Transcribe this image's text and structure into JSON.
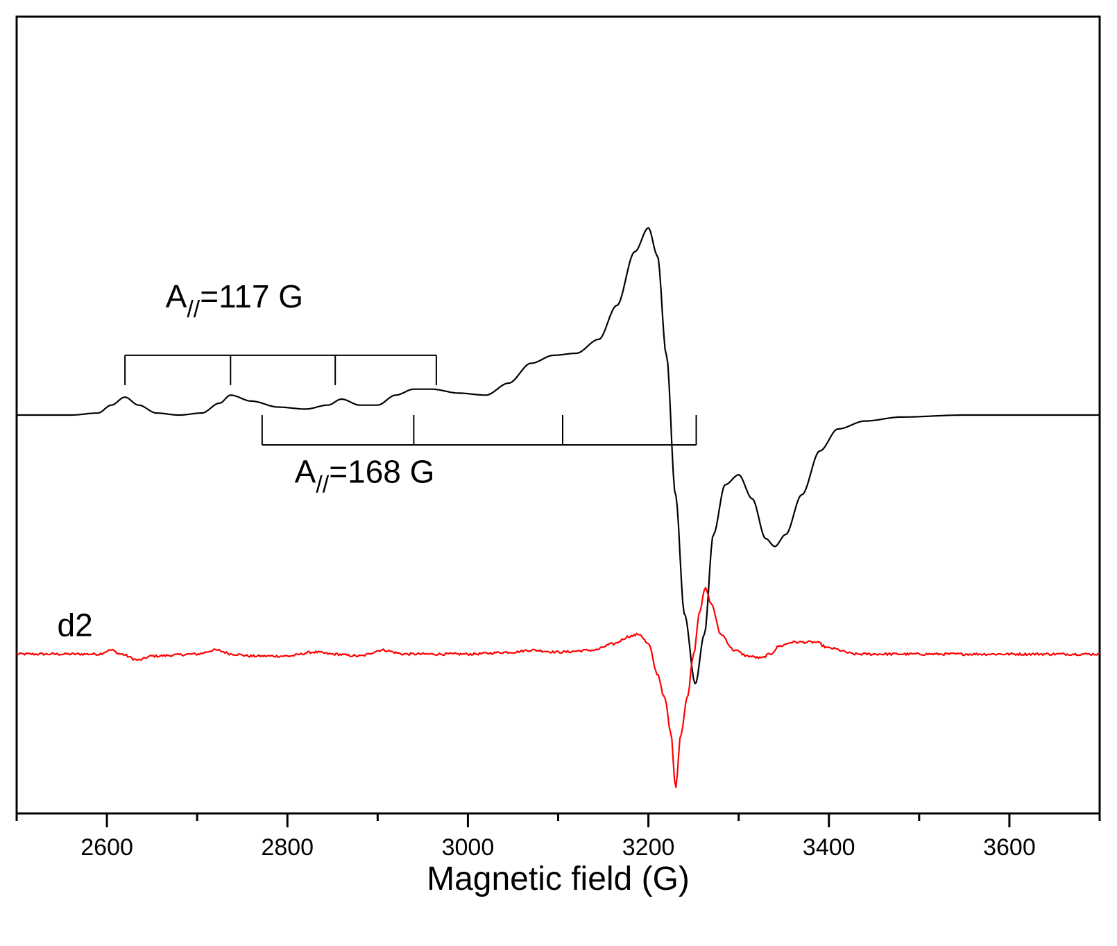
{
  "chart_data": {
    "type": "line",
    "title": "",
    "xlabel": "Magnetic field (G)",
    "ylabel": "",
    "xlim": [
      2500,
      3700
    ],
    "ylim": [
      -2.0,
      2.0
    ],
    "x_ticks": [
      2600,
      2800,
      3000,
      3200,
      3400,
      3600
    ],
    "x_minor_ticks": [
      2500,
      2700,
      2900,
      3100,
      3300,
      3500,
      3700
    ],
    "y_ticks_shown": false,
    "grid": false,
    "series": [
      {
        "name": "",
        "color": "#000000",
        "points": [
          [
            2500,
            0.0
          ],
          [
            2560,
            0.0
          ],
          [
            2590,
            0.01
          ],
          [
            2605,
            0.05
          ],
          [
            2620,
            0.09
          ],
          [
            2635,
            0.05
          ],
          [
            2655,
            0.01
          ],
          [
            2680,
            0.0
          ],
          [
            2705,
            0.01
          ],
          [
            2725,
            0.06
          ],
          [
            2737,
            0.1
          ],
          [
            2760,
            0.07
          ],
          [
            2790,
            0.04
          ],
          [
            2820,
            0.03
          ],
          [
            2845,
            0.05
          ],
          [
            2860,
            0.08
          ],
          [
            2880,
            0.05
          ],
          [
            2900,
            0.05
          ],
          [
            2920,
            0.1
          ],
          [
            2940,
            0.13
          ],
          [
            2960,
            0.13
          ],
          [
            2990,
            0.11
          ],
          [
            3020,
            0.1
          ],
          [
            3045,
            0.16
          ],
          [
            3070,
            0.26
          ],
          [
            3095,
            0.3
          ],
          [
            3120,
            0.31
          ],
          [
            3145,
            0.38
          ],
          [
            3165,
            0.55
          ],
          [
            3185,
            0.82
          ],
          [
            3200,
            0.94
          ],
          [
            3210,
            0.8
          ],
          [
            3220,
            0.3
          ],
          [
            3230,
            -0.4
          ],
          [
            3240,
            -1.0
          ],
          [
            3252,
            -1.35
          ],
          [
            3262,
            -1.1
          ],
          [
            3272,
            -0.6
          ],
          [
            3285,
            -0.35
          ],
          [
            3300,
            -0.3
          ],
          [
            3315,
            -0.42
          ],
          [
            3330,
            -0.62
          ],
          [
            3340,
            -0.66
          ],
          [
            3352,
            -0.6
          ],
          [
            3370,
            -0.4
          ],
          [
            3390,
            -0.18
          ],
          [
            3410,
            -0.07
          ],
          [
            3440,
            -0.03
          ],
          [
            3480,
            -0.01
          ],
          [
            3550,
            0.0
          ],
          [
            3700,
            0.0
          ]
        ]
      },
      {
        "name": "d2",
        "color": "#ff0000",
        "noise": 0.006,
        "points": [
          [
            2500,
            -1.2
          ],
          [
            2590,
            -1.2
          ],
          [
            2605,
            -1.18
          ],
          [
            2615,
            -1.2
          ],
          [
            2635,
            -1.23
          ],
          [
            2650,
            -1.21
          ],
          [
            2700,
            -1.2
          ],
          [
            2720,
            -1.18
          ],
          [
            2740,
            -1.2
          ],
          [
            2760,
            -1.21
          ],
          [
            2800,
            -1.21
          ],
          [
            2830,
            -1.19
          ],
          [
            2850,
            -1.2
          ],
          [
            2880,
            -1.21
          ],
          [
            2905,
            -1.18
          ],
          [
            2930,
            -1.2
          ],
          [
            3000,
            -1.2
          ],
          [
            3050,
            -1.19
          ],
          [
            3070,
            -1.18
          ],
          [
            3100,
            -1.19
          ],
          [
            3140,
            -1.18
          ],
          [
            3160,
            -1.15
          ],
          [
            3180,
            -1.11
          ],
          [
            3190,
            -1.1
          ],
          [
            3200,
            -1.15
          ],
          [
            3210,
            -1.3
          ],
          [
            3218,
            -1.42
          ],
          [
            3225,
            -1.6
          ],
          [
            3230,
            -1.87
          ],
          [
            3236,
            -1.6
          ],
          [
            3243,
            -1.42
          ],
          [
            3250,
            -1.2
          ],
          [
            3257,
            -0.98
          ],
          [
            3263,
            -0.87
          ],
          [
            3270,
            -0.95
          ],
          [
            3280,
            -1.1
          ],
          [
            3295,
            -1.18
          ],
          [
            3310,
            -1.21
          ],
          [
            3325,
            -1.22
          ],
          [
            3335,
            -1.2
          ],
          [
            3345,
            -1.16
          ],
          [
            3360,
            -1.14
          ],
          [
            3385,
            -1.14
          ],
          [
            3400,
            -1.17
          ],
          [
            3430,
            -1.2
          ],
          [
            3700,
            -1.2
          ]
        ]
      }
    ],
    "annotations": [
      {
        "label": "d2",
        "at": [
          2545,
          -1.11
        ]
      },
      {
        "text_main": "A",
        "text_sub": "//",
        "text_tail": "=117 G",
        "label_at": [
          2665,
          0.54
        ],
        "bracket": {
          "y": 0.3,
          "tick_to": 0.15,
          "positions": [
            2620,
            2737,
            2853,
            2965
          ]
        }
      },
      {
        "text_main": "A",
        "text_sub": "//",
        "text_tail": "=168 G",
        "label_at": [
          2808,
          -0.34
        ],
        "bracket": {
          "y": -0.15,
          "tick_to": 0.0,
          "positions": [
            2772,
            2940,
            3105,
            3253
          ]
        }
      }
    ]
  }
}
